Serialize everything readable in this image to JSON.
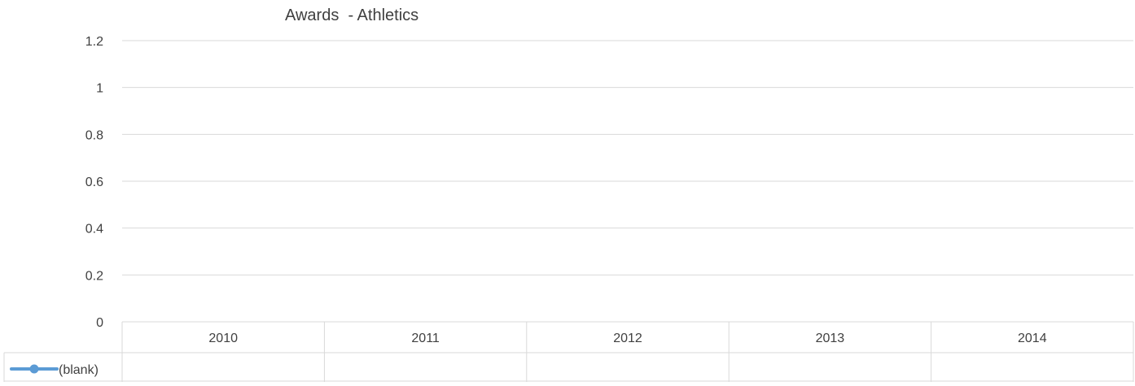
{
  "chart_data": {
    "type": "line",
    "title": "Awards  - Athletics",
    "categories": [
      "2010",
      "2011",
      "2012",
      "2013",
      "2014"
    ],
    "y_ticks": [
      "0",
      "0.2",
      "0.4",
      "0.6",
      "0.8",
      "1",
      "1.2"
    ],
    "ylim": [
      0,
      1.2
    ],
    "grid": true,
    "series": [
      {
        "name": "(blank)",
        "values": [
          null,
          null,
          null,
          null,
          null
        ],
        "color": "#5B9BD5"
      }
    ],
    "data_table": true,
    "legend_position": "data-table-left"
  },
  "colors": {
    "gridline": "#D9D9D9",
    "text": "#404040",
    "series": "#5B9BD5"
  }
}
